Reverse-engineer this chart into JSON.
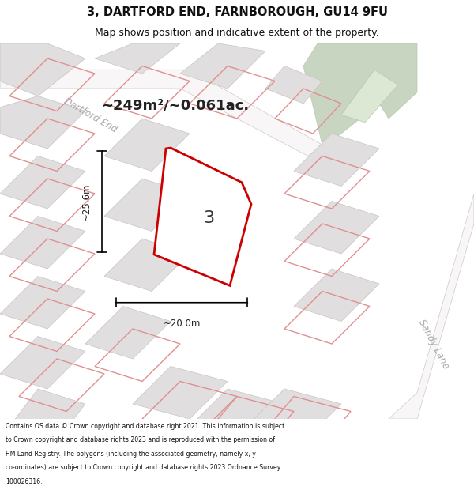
{
  "title_line1": "3, DARTFORD END, FARNBOROUGH, GU14 9FU",
  "title_line2": "Map shows position and indicative extent of the property.",
  "area_label": "~249m²/~0.061ac.",
  "width_label": "~20.0m",
  "height_label": "~25.6m",
  "number_label": "3",
  "road_label_1": "Dartford End",
  "road_label_2": "Sandy Lane",
  "footer_lines": [
    "Contains OS data © Crown copyright and database right 2021. This information is subject",
    "to Crown copyright and database rights 2023 and is reproduced with the permission of",
    "HM Land Registry. The polygons (including the associated geometry, namely x, y",
    "co-ordinates) are subject to Crown copyright and database rights 2023 Ordnance Survey",
    "100026316."
  ],
  "map_bg": "#eeecec",
  "plot_fill": "#ffffff",
  "building_fill": "#e0dede",
  "building_edge": "#c8c4c4",
  "green_fill": "#c8d5c0",
  "green_edge": "#b8c8b0",
  "road_fill": "#f8f6f6",
  "road_edge": "#d0c8c8",
  "red_outline": "#cc0000",
  "pink_outline": "#e09090",
  "title_bg": "#ffffff",
  "footer_bg": "#ffffff"
}
